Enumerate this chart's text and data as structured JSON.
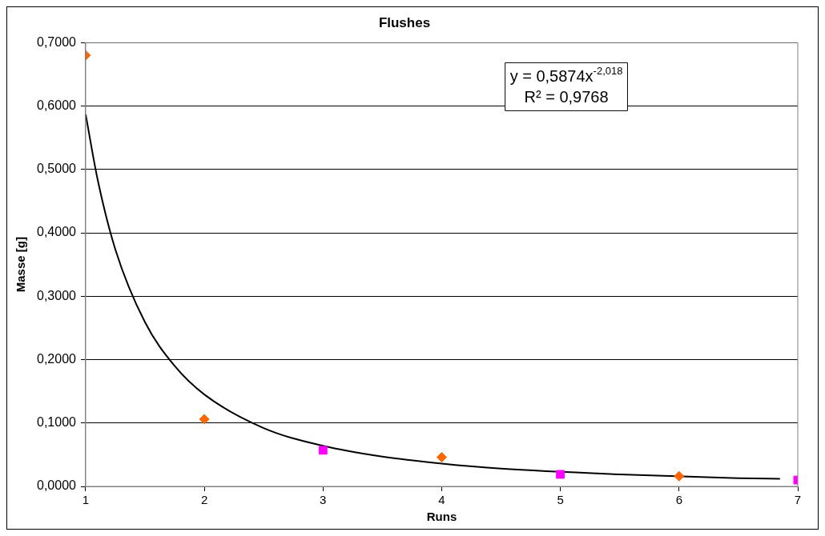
{
  "chart_data": {
    "type": "scatter",
    "title": "Flushes",
    "xlabel": "Runs",
    "ylabel": "Masse [g]",
    "xlim": [
      1,
      7
    ],
    "xticks": [
      1,
      2,
      3,
      4,
      5,
      6,
      7
    ],
    "ylim": [
      0,
      0.7
    ],
    "yticks": [
      {
        "value": 0,
        "label": "0,0000"
      },
      {
        "value": 0.1,
        "label": "0,1000"
      },
      {
        "value": 0.2,
        "label": "0,2000"
      },
      {
        "value": 0.3,
        "label": "0,3000"
      },
      {
        "value": 0.4,
        "label": "0,4000"
      },
      {
        "value": 0.5,
        "label": "0,5000"
      },
      {
        "value": 0.6,
        "label": "0,6000"
      },
      {
        "value": 0.7,
        "label": "0,7000"
      }
    ],
    "grid": "y",
    "legend": false,
    "series": [
      {
        "color": "#ff6600",
        "marker": "diamond",
        "x": [
          1,
          2,
          4,
          6
        ],
        "values": [
          0.68,
          0.106,
          0.046,
          0.016
        ]
      },
      {
        "color": "#ff00ff",
        "marker": "square",
        "x": [
          3,
          5,
          7
        ],
        "values": [
          0.057,
          0.019,
          0.01
        ]
      },
      {
        "type": "line",
        "color": "#000000",
        "marker": "none",
        "x": [
          1,
          1.1,
          1.25,
          1.5,
          1.75,
          2,
          2.5,
          3,
          3.5,
          4,
          4.5,
          5.5,
          6.5,
          6.85
        ],
        "values": [
          0.587,
          0.485,
          0.374,
          0.259,
          0.19,
          0.145,
          0.092,
          0.064,
          0.047,
          0.036,
          0.028,
          0.019,
          0.013,
          0.012
        ]
      }
    ],
    "annotations": [
      "y = 0,5874x$^{-2,018}$",
      "R² = 0,9768"
    ]
  }
}
